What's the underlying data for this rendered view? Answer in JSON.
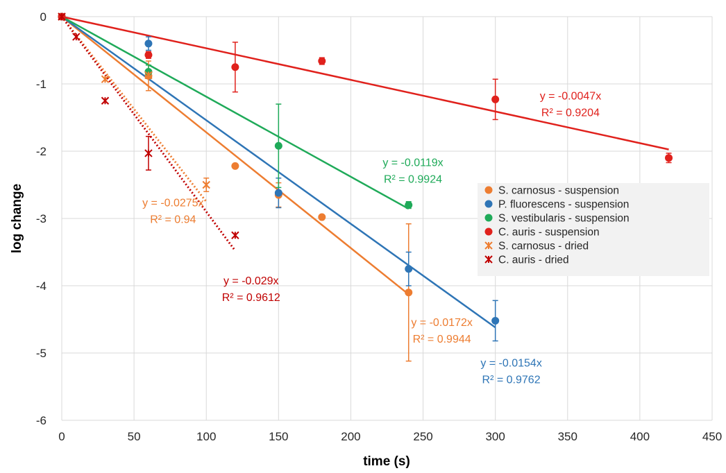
{
  "chart_data": {
    "type": "scatter",
    "title": "",
    "xlabel": "time (s)",
    "ylabel": "log change",
    "xlim": [
      0,
      450
    ],
    "ylim": [
      -6,
      0
    ],
    "x_ticks": [
      "0",
      "50",
      "100",
      "150",
      "200",
      "250",
      "300",
      "350",
      "400",
      "450"
    ],
    "y_ticks": [
      "0",
      "-1",
      "-2",
      "-3",
      "-4",
      "-5",
      "-6"
    ],
    "grid": true,
    "legend_position": "right",
    "series": [
      {
        "name": "S. carnosus - suspension",
        "marker": "circle",
        "color": "#ED7D31",
        "points": [
          {
            "x": 0,
            "y": 0
          },
          {
            "x": 60,
            "y": -0.88,
            "err": 0.22
          },
          {
            "x": 120,
            "y": -2.22
          },
          {
            "x": 150,
            "y": -2.65,
            "err": 0.18
          },
          {
            "x": 180,
            "y": -2.98
          },
          {
            "x": 240,
            "y": -4.1,
            "err": 1.02
          }
        ],
        "fit": {
          "slope": -0.0172,
          "x_end": 240,
          "style": "solid",
          "equation": "y = -0.0172x",
          "r2": "R² = 0.9944"
        }
      },
      {
        "name": "P. fluorescens - suspension",
        "marker": "circle",
        "color": "#2E75B6",
        "points": [
          {
            "x": 0,
            "y": 0
          },
          {
            "x": 60,
            "y": -0.4,
            "err": 0.1
          },
          {
            "x": 150,
            "y": -2.62,
            "err": 0.22
          },
          {
            "x": 240,
            "y": -3.75,
            "err": 0.25
          },
          {
            "x": 300,
            "y": -4.52,
            "err": 0.3
          }
        ],
        "fit": {
          "slope": -0.0154,
          "x_end": 300,
          "style": "solid",
          "equation": "y = -0.0154x",
          "r2": "R² = 0.9762"
        }
      },
      {
        "name": "S. vestibularis - suspension",
        "marker": "circle",
        "color": "#1FAA59",
        "points": [
          {
            "x": 0,
            "y": 0
          },
          {
            "x": 60,
            "y": -0.82,
            "err": 0.1
          },
          {
            "x": 150,
            "y": -1.92,
            "err": 0.62
          },
          {
            "x": 240,
            "y": -2.8,
            "err": 0.05
          }
        ],
        "fit": {
          "slope": -0.0119,
          "x_end": 240,
          "style": "solid",
          "equation": "y = -0.0119x",
          "r2": "R² = 0.9924"
        }
      },
      {
        "name": "C. auris - suspension",
        "marker": "circle",
        "color": "#E0211C",
        "points": [
          {
            "x": 0,
            "y": 0
          },
          {
            "x": 60,
            "y": -0.57,
            "err": 0.05
          },
          {
            "x": 120,
            "y": -0.75,
            "err": 0.37
          },
          {
            "x": 180,
            "y": -0.66,
            "err": 0.05
          },
          {
            "x": 300,
            "y": -1.23,
            "err": 0.3
          },
          {
            "x": 420,
            "y": -2.1,
            "err": 0.07
          }
        ],
        "fit": {
          "slope": -0.0047,
          "x_end": 420,
          "style": "solid",
          "equation": "y = -0.0047x",
          "r2": "R² = 0.9204"
        }
      },
      {
        "name": "S. carnosus - dried",
        "marker": "asterisk",
        "color": "#ED7D31",
        "points": [
          {
            "x": 0,
            "y": 0
          },
          {
            "x": 30,
            "y": -0.93
          },
          {
            "x": 60,
            "y": -0.87
          },
          {
            "x": 100,
            "y": -2.5,
            "err": 0.1
          }
        ],
        "fit": {
          "slope": -0.0275,
          "x_end": 100,
          "style": "dotted",
          "equation": "y = -0.0275x",
          "r2": "R² = 0.94"
        }
      },
      {
        "name": "C. auris - dried",
        "marker": "asterisk",
        "color": "#C00000",
        "points": [
          {
            "x": 0,
            "y": 0
          },
          {
            "x": 10,
            "y": -0.3
          },
          {
            "x": 30,
            "y": -1.25
          },
          {
            "x": 60,
            "y": -2.03,
            "err": 0.25
          },
          {
            "x": 120,
            "y": -3.25
          }
        ],
        "fit": {
          "slope": -0.029,
          "x_end": 120,
          "style": "dotted",
          "equation": "y = -0.029x",
          "r2": "R² = 0.9612"
        }
      }
    ],
    "annotations": [
      {
        "series": 3,
        "x": 352,
        "y": -1.23
      },
      {
        "series": 2,
        "x": 243,
        "y": -2.22
      },
      {
        "series": 4,
        "x": 77,
        "y": -2.82
      },
      {
        "series": 5,
        "x": 131,
        "y": -3.98
      },
      {
        "series": 0,
        "x": 263,
        "y": -4.6
      },
      {
        "series": 1,
        "x": 311,
        "y": -5.2
      }
    ]
  }
}
